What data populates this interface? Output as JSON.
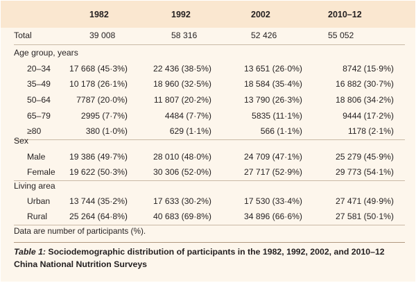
{
  "columns": [
    "1982",
    "1992",
    "2002",
    "2010–12"
  ],
  "total": {
    "label": "Total",
    "values": [
      "39 008",
      "58 316",
      "52 426",
      "55 052"
    ]
  },
  "sections": [
    {
      "title": "Age group, years",
      "rows": [
        {
          "label": "20–34",
          "values": [
            "17 668 (45·3%)",
            "22 436 (38·5%)",
            "13 651 (26·0%)",
            "8742 (15·9%)"
          ]
        },
        {
          "label": "35–49",
          "values": [
            "10 178 (26·1%)",
            "18 960 (32·5%)",
            "18 584 (35·4%)",
            "16 882 (30·7%)"
          ]
        },
        {
          "label": "50–64",
          "values": [
            "7787 (20·0%)",
            "11 807 (20·2%)",
            "13 790 (26·3%)",
            "18 806 (34·2%)"
          ]
        },
        {
          "label": "65–79",
          "values": [
            "2995 (7·7%)",
            "4484 (7·7%)",
            "5835 (11·1%)",
            "9444 (17·2%)"
          ]
        },
        {
          "label": "≥80",
          "values": [
            "380 (1·0%)",
            "629 (1·1%)",
            "566 (1·1%)",
            "1178 (2·1%)"
          ]
        }
      ]
    },
    {
      "title": "Sex",
      "rows": [
        {
          "label": "Male",
          "values": [
            "19 386 (49·7%)",
            "28 010 (48·0%)",
            "24 709 (47·1%)",
            "25 279 (45·9%)"
          ]
        },
        {
          "label": "Female",
          "values": [
            "19 622 (50·3%)",
            "30 306 (52·0%)",
            "27 717 (52·9%)",
            "29 773 (54·1%)"
          ]
        }
      ]
    },
    {
      "title": "Living area",
      "rows": [
        {
          "label": "Urban",
          "values": [
            "13 744 (35·2%)",
            "17 633 (30·2%)",
            "17 530 (33·4%)",
            "27 471 (49·9%)"
          ]
        },
        {
          "label": "Rural",
          "values": [
            "25 264 (64·8%)",
            "40 683 (69·8%)",
            "34 896 (66·6%)",
            "27 581 (50·1%)"
          ]
        }
      ]
    }
  ],
  "footnote": "Data are number of participants (%).",
  "caption": {
    "label": "Table 1:",
    "text": " Sociodemographic distribution of participants in the 1982, 1992, 2002, and 2010–12 China National Nutrition Surveys"
  },
  "colors": {
    "header_band": "#fae7d0",
    "body_bg": "#fdf6ec",
    "rule": "#c9b9a6"
  }
}
